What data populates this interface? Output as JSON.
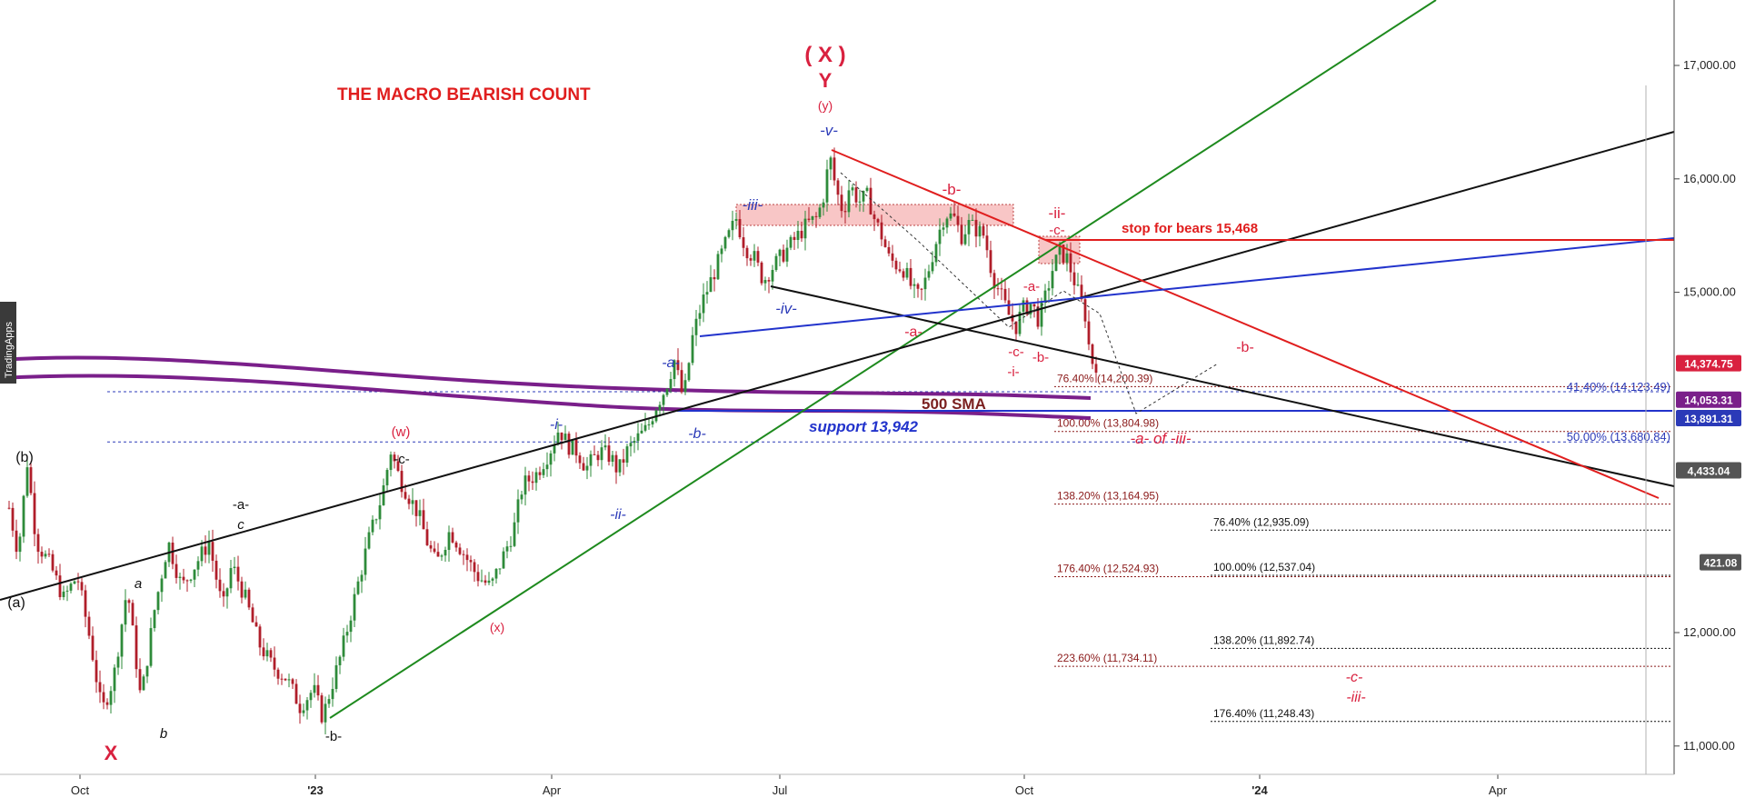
{
  "chart_data": {
    "type": "candlestick",
    "title": "THE MACRO BEARISH COUNT",
    "watermark": "TradingApps",
    "x_ticks": [
      "Oct",
      "'23",
      "Apr",
      "Jul",
      "Oct",
      "'24",
      "Apr"
    ],
    "y_ticks": [
      "17,000.00",
      "16,000.00",
      "15,000.00",
      "12,000.00",
      "11,000.00"
    ],
    "price_tags": [
      {
        "label": "14,374.75",
        "value": 14374.75,
        "color": "#d9213f"
      },
      {
        "label": "14,053.31",
        "value": 14053.31,
        "color": "#7a1f8a"
      },
      {
        "label": "13,891.31",
        "value": 13891.31,
        "color": "#2b3ab8"
      },
      {
        "label": "4,433.04",
        "value": 13430,
        "color": "#555555"
      },
      {
        "label": "421.08",
        "value": 12620,
        "color": "#555555"
      }
    ],
    "sma_label": "500 SMA",
    "support_label": "support 13,942",
    "stop_label": "stop for bears 15,468",
    "fib_levels": [
      {
        "label": "76.40% (14,200.39)",
        "value": 14200.39,
        "color": "#8b1a1a",
        "group": "a"
      },
      {
        "label": "100.00% (13,804.98)",
        "value": 13804.98,
        "color": "#8b1a1a",
        "group": "a"
      },
      {
        "label": "138.20% (13,164.95)",
        "value": 13164.95,
        "color": "#8b1a1a",
        "group": "a"
      },
      {
        "label": "176.40% (12,524.93)",
        "value": 12524.93,
        "color": "#8b1a1a",
        "group": "a"
      },
      {
        "label": "223.60% (11,734.11)",
        "value": 11734.11,
        "color": "#8b1a1a",
        "group": "a"
      },
      {
        "label": "41.40% (14,123.49)",
        "value": 14123.49,
        "color": "#2b3ab8",
        "group": "r"
      },
      {
        "label": "50.00% (13,680.84)",
        "value": 13680.84,
        "color": "#2b3ab8",
        "group": "r"
      },
      {
        "label": "76.40% (12,935.09)",
        "value": 12935.09,
        "color": "#111111",
        "group": "b"
      },
      {
        "label": "100.00% (12,537.04)",
        "value": 12537.04,
        "color": "#111111",
        "group": "b"
      },
      {
        "label": "138.20% (11,892.74)",
        "value": 11892.74,
        "color": "#111111",
        "group": "b"
      },
      {
        "label": "176.40% (11,248.43)",
        "value": 11248.43,
        "color": "#111111",
        "group": "b"
      }
    ],
    "wave_labels": [
      {
        "text": "( X )",
        "color": "#d9213f"
      },
      {
        "text": "Y",
        "color": "#d9213f"
      },
      {
        "text": "(y)",
        "color": "#d9213f"
      },
      {
        "text": "-v-",
        "color": "#2b3ab8"
      },
      {
        "text": "-iii-",
        "color": "#2b3ab8"
      },
      {
        "text": "-iv-",
        "color": "#2b3ab8"
      },
      {
        "text": "-b-",
        "color": "#d9213f"
      },
      {
        "text": "-ii-",
        "color": "#d9213f"
      },
      {
        "text": "-c-",
        "color": "#d9213f"
      },
      {
        "text": "-a-",
        "color": "#d9213f"
      },
      {
        "text": "-a-",
        "color": "#d9213f"
      },
      {
        "text": "-c-",
        "color": "#d9213f"
      },
      {
        "text": "-i-",
        "color": "#d9213f"
      },
      {
        "text": "-b-",
        "color": "#d9213f"
      },
      {
        "text": "-b-",
        "color": "#d9213f"
      },
      {
        "text": "-a-",
        "color": "#2b3ab8"
      },
      {
        "text": "-b-",
        "color": "#2b3ab8"
      },
      {
        "text": "-i-",
        "color": "#2b3ab8"
      },
      {
        "text": "-ii-",
        "color": "#2b3ab8"
      },
      {
        "text": "(w)",
        "color": "#d9213f"
      },
      {
        "text": "(x)",
        "color": "#d9213f"
      },
      {
        "text": "-c-",
        "color": "#111111"
      },
      {
        "text": "(b)",
        "color": "#111111"
      },
      {
        "text": "-a-",
        "color": "#111111"
      },
      {
        "text": "c",
        "color": "#111111"
      },
      {
        "text": "a",
        "color": "#111111"
      },
      {
        "text": "(a)",
        "color": "#111111"
      },
      {
        "text": "b",
        "color": "#111111"
      },
      {
        "text": "-b-",
        "color": "#111111"
      },
      {
        "text": "X",
        "color": "#d9213f"
      },
      {
        "text": "-a- of -iii-",
        "color": "#d9213f"
      },
      {
        "text": "-c-",
        "color": "#d9213f"
      },
      {
        "text": "-iii-",
        "color": "#d9213f"
      }
    ],
    "colors": {
      "up": "#2e8b3a",
      "down": "#b01e2a",
      "sma": "#7a1f8a",
      "trend_green": "#1e8a1e",
      "trend_red": "#e01e1e",
      "trend_blue": "#2233cc",
      "trend_black": "#111111",
      "zone": "#f4a0a0"
    },
    "anchors": [
      [
        10,
        13100
      ],
      [
        20,
        12700
      ],
      [
        30,
        13500
      ],
      [
        40,
        12800
      ],
      [
        55,
        12600
      ],
      [
        70,
        12300
      ],
      [
        85,
        12500
      ],
      [
        100,
        11900
      ],
      [
        112,
        11300
      ],
      [
        125,
        11600
      ],
      [
        140,
        12400
      ],
      [
        155,
        11400
      ],
      [
        170,
        12200
      ],
      [
        185,
        12800
      ],
      [
        200,
        12400
      ],
      [
        215,
        12600
      ],
      [
        230,
        12800
      ],
      [
        245,
        12200
      ],
      [
        255,
        12600
      ],
      [
        270,
        12300
      ],
      [
        285,
        11900
      ],
      [
        300,
        11700
      ],
      [
        315,
        11600
      ],
      [
        330,
        11350
      ],
      [
        345,
        11500
      ],
      [
        355,
        11250
      ],
      [
        362,
        11450
      ],
      [
        375,
        11800
      ],
      [
        390,
        12300
      ],
      [
        405,
        12800
      ],
      [
        420,
        13200
      ],
      [
        430,
        13600
      ],
      [
        440,
        13350
      ],
      [
        450,
        13200
      ],
      [
        460,
        13050
      ],
      [
        470,
        12800
      ],
      [
        480,
        12600
      ],
      [
        495,
        12900
      ],
      [
        510,
        12700
      ],
      [
        525,
        12500
      ],
      [
        540,
        12400
      ],
      [
        555,
        12700
      ],
      [
        565,
        12900
      ],
      [
        575,
        13300
      ],
      [
        590,
        13400
      ],
      [
        605,
        13600
      ],
      [
        615,
        13800
      ],
      [
        625,
        13650
      ],
      [
        635,
        13600
      ],
      [
        645,
        13450
      ],
      [
        660,
        13600
      ],
      [
        672,
        13550
      ],
      [
        680,
        13420
      ],
      [
        690,
        13600
      ],
      [
        700,
        13700
      ],
      [
        712,
        13800
      ],
      [
        722,
        14000
      ],
      [
        732,
        14150
      ],
      [
        742,
        14400
      ],
      [
        752,
        14050
      ],
      [
        762,
        14600
      ],
      [
        772,
        14900
      ],
      [
        782,
        15100
      ],
      [
        792,
        15300
      ],
      [
        802,
        15500
      ],
      [
        810,
        15650
      ],
      [
        820,
        15400
      ],
      [
        830,
        15300
      ],
      [
        840,
        15100
      ],
      [
        848,
        15200
      ],
      [
        858,
        15300
      ],
      [
        868,
        15400
      ],
      [
        878,
        15500
      ],
      [
        888,
        15600
      ],
      [
        898,
        15650
      ],
      [
        905,
        15800
      ],
      [
        913,
        16200
      ],
      [
        920,
        15900
      ],
      [
        928,
        15700
      ],
      [
        935,
        15950
      ],
      [
        945,
        15800
      ],
      [
        955,
        15850
      ],
      [
        962,
        15650
      ],
      [
        970,
        15500
      ],
      [
        978,
        15300
      ],
      [
        985,
        15250
      ],
      [
        995,
        15200
      ],
      [
        1005,
        15000
      ],
      [
        1012,
        14950
      ],
      [
        1020,
        15150
      ],
      [
        1030,
        15450
      ],
      [
        1040,
        15700
      ],
      [
        1050,
        15650
      ],
      [
        1058,
        15500
      ],
      [
        1066,
        15600
      ],
      [
        1075,
        15550
      ],
      [
        1083,
        15500
      ],
      [
        1092,
        15150
      ],
      [
        1100,
        15000
      ],
      [
        1110,
        14800
      ],
      [
        1118,
        14700
      ],
      [
        1125,
        14850
      ],
      [
        1135,
        14900
      ],
      [
        1143,
        14750
      ],
      [
        1150,
        14950
      ],
      [
        1158,
        15200
      ],
      [
        1166,
        15350
      ],
      [
        1174,
        15300
      ],
      [
        1182,
        15100
      ],
      [
        1188,
        14950
      ],
      [
        1194,
        14800
      ],
      [
        1200,
        14400
      ],
      [
        1206,
        14370
      ]
    ]
  }
}
